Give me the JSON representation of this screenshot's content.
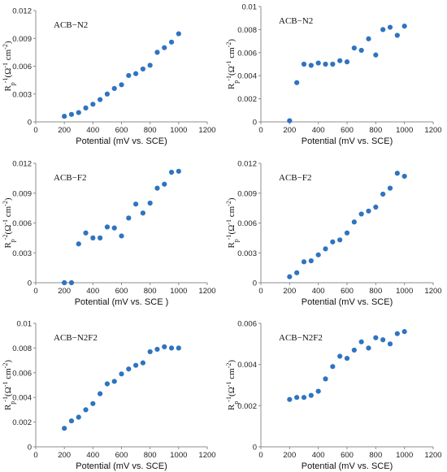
{
  "chart_data": [
    {
      "type": "scatter",
      "title": "ACB−N2",
      "xlabel": "Potential (mV vs. SCE)",
      "ylabel": "R_p^-1(Ω^-1 cm^-2)",
      "xlim": [
        0,
        1200
      ],
      "ylim": [
        0,
        0.012
      ],
      "xticks": [
        "0",
        "200",
        "400",
        "600",
        "800",
        "1000",
        "1200"
      ],
      "yticks": [
        "0",
        "0.003",
        "0.006",
        "0.009",
        "0.012"
      ],
      "grid": false,
      "x": [
        200,
        250,
        300,
        350,
        400,
        450,
        500,
        550,
        600,
        650,
        700,
        750,
        800,
        850,
        900,
        950,
        1000
      ],
      "y": [
        0.0006,
        0.0008,
        0.001,
        0.0015,
        0.0019,
        0.0024,
        0.003,
        0.0036,
        0.004,
        0.005,
        0.0052,
        0.0057,
        0.0061,
        0.0075,
        0.008,
        0.0086,
        0.0095
      ]
    },
    {
      "type": "scatter",
      "title": "ACB−N2",
      "xlabel": "Potential (mV vs. SCE)",
      "ylabel": "R_p^-1(Ω^-1 cm^-2)",
      "xlim": [
        0,
        1200
      ],
      "ylim": [
        0,
        0.01
      ],
      "xticks": [
        "0",
        "200",
        "400",
        "600",
        "800",
        "1000",
        "1200"
      ],
      "yticks": [
        "0",
        "0.002",
        "0.004",
        "0.006",
        "0.008",
        "0.01"
      ],
      "grid": false,
      "x": [
        200,
        250,
        300,
        350,
        400,
        450,
        500,
        550,
        600,
        650,
        700,
        750,
        800,
        850,
        900,
        950,
        1000
      ],
      "y": [
        0.0001,
        0.0034,
        0.005,
        0.0049,
        0.0051,
        0.005,
        0.005,
        0.0053,
        0.0052,
        0.0064,
        0.0062,
        0.0072,
        0.0058,
        0.008,
        0.0082,
        0.0075,
        0.0083
      ]
    },
    {
      "type": "scatter",
      "title": "ACB−F2",
      "xlabel": "Potential (mV vs. SCE )",
      "ylabel": "R_p^-2(Ω^-1 cm^-2)",
      "xlim": [
        0,
        1200
      ],
      "ylim": [
        0,
        0.012
      ],
      "xticks": [
        "0",
        "200",
        "400",
        "600",
        "800",
        "1000",
        "1200"
      ],
      "yticks": [
        "0",
        "0.003",
        "0.006",
        "0.009",
        "0.012"
      ],
      "grid": false,
      "x": [
        200,
        250,
        300,
        350,
        400,
        450,
        500,
        550,
        600,
        650,
        700,
        750,
        800,
        850,
        900,
        950,
        1000
      ],
      "y": [
        0.0,
        0.0,
        0.0039,
        0.005,
        0.0045,
        0.0045,
        0.0056,
        0.0055,
        0.0047,
        0.0065,
        0.0079,
        0.007,
        0.008,
        0.0095,
        0.0099,
        0.0111,
        0.0112
      ]
    },
    {
      "type": "scatter",
      "title": "ACB−F2",
      "xlabel": "Potential (mV vs. SCE)",
      "ylabel": "R_p^-1(Ω^-1 cm^-2)",
      "xlim": [
        0,
        1200
      ],
      "ylim": [
        0,
        0.012
      ],
      "xticks": [
        "0",
        "200",
        "400",
        "600",
        "800",
        "1000",
        "1200"
      ],
      "yticks": [
        "0",
        "0.003",
        "0.006",
        "0.009",
        "0.012"
      ],
      "grid": false,
      "x": [
        200,
        250,
        300,
        350,
        400,
        450,
        500,
        550,
        600,
        650,
        700,
        750,
        800,
        850,
        900,
        950,
        1000
      ],
      "y": [
        0.0006,
        0.001,
        0.0021,
        0.0022,
        0.0028,
        0.0034,
        0.0041,
        0.0043,
        0.005,
        0.0061,
        0.0069,
        0.0072,
        0.0076,
        0.0089,
        0.0095,
        0.011,
        0.0107
      ]
    },
    {
      "type": "scatter",
      "title": "ACB−N2F2",
      "xlabel": "Potential (mV vs. SCE)",
      "ylabel": "R_p^-1(Ω^-1 cm^-2)",
      "xlim": [
        0,
        1200
      ],
      "ylim": [
        0,
        0.01
      ],
      "xticks": [
        "0",
        "200",
        "400",
        "600",
        "800",
        "1000",
        "1200"
      ],
      "yticks": [
        "0",
        "0.002",
        "0.004",
        "0.006",
        "0.008",
        "0.01"
      ],
      "grid": false,
      "x": [
        200,
        250,
        300,
        350,
        400,
        450,
        500,
        550,
        600,
        650,
        700,
        750,
        800,
        850,
        900,
        950,
        1000
      ],
      "y": [
        0.0015,
        0.0021,
        0.0024,
        0.003,
        0.0035,
        0.0043,
        0.0051,
        0.0053,
        0.0059,
        0.0063,
        0.0066,
        0.0068,
        0.0077,
        0.0079,
        0.0081,
        0.008,
        0.008
      ]
    },
    {
      "type": "scatter",
      "title": "ACB−N2F2",
      "xlabel": "Potential (mV vs. SCE)",
      "ylabel": "R_p^-1(Ω^-1 cm^-2)",
      "xlim": [
        0,
        1200
      ],
      "ylim": [
        0,
        0.006
      ],
      "xticks": [
        "0",
        "200",
        "400",
        "600",
        "800",
        "1000",
        "1200"
      ],
      "yticks": [
        "0",
        "0.002",
        "0.004",
        "0.006"
      ],
      "grid": false,
      "x": [
        200,
        250,
        300,
        350,
        400,
        450,
        500,
        550,
        600,
        650,
        700,
        750,
        800,
        850,
        900,
        950,
        1000
      ],
      "y": [
        0.0023,
        0.0024,
        0.0024,
        0.0025,
        0.0027,
        0.0033,
        0.0039,
        0.0044,
        0.0043,
        0.0047,
        0.0051,
        0.0048,
        0.0053,
        0.0052,
        0.005,
        0.0055,
        0.0056
      ]
    }
  ],
  "accent_color": "#2e74c0"
}
